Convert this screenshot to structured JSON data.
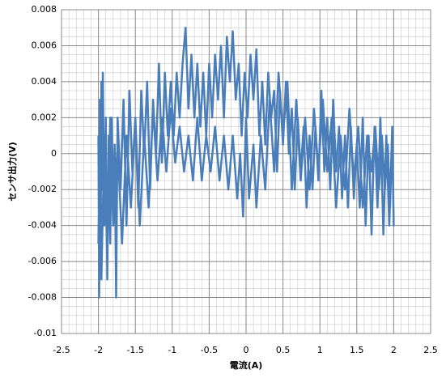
{
  "chart_data": {
    "type": "line",
    "xlabel": "電流(A)",
    "ylabel": "センサ出力(V)",
    "x": [
      -2.0,
      -1.99,
      -1.98,
      -1.97,
      -1.96,
      -1.95,
      -1.94,
      -1.92,
      -1.9,
      -1.88,
      -1.86,
      -1.84,
      -1.82,
      -1.8,
      -1.78,
      -1.76,
      -1.74,
      -1.7,
      -1.66,
      -1.62,
      -1.58,
      -1.54,
      -1.5,
      -1.46,
      -1.42,
      -1.38,
      -1.34,
      -1.3,
      -1.26,
      -1.22,
      -1.18,
      -1.14,
      -1.1,
      -1.06,
      -1.02,
      -0.98,
      -0.94,
      -0.9,
      -0.86,
      -0.82,
      -0.78,
      -0.74,
      -0.7,
      -0.66,
      -0.62,
      -0.58,
      -0.54,
      -0.5,
      -0.46,
      -0.42,
      -0.38,
      -0.34,
      -0.3,
      -0.26,
      -0.22,
      -0.18,
      -0.14,
      -0.1,
      -0.06,
      -0.02,
      0.02,
      0.06,
      0.1,
      0.14,
      0.18,
      0.22,
      0.26,
      0.3,
      0.34,
      0.38,
      0.42,
      0.46,
      0.5,
      0.54,
      0.58,
      0.62,
      0.66,
      0.7,
      0.74,
      0.78,
      0.82,
      0.86,
      0.9,
      0.94,
      0.98,
      1.02,
      1.06,
      1.1,
      1.14,
      1.18,
      1.22,
      1.26,
      1.3,
      1.34,
      1.38,
      1.42,
      1.46,
      1.5,
      1.54,
      1.58,
      1.62,
      1.66,
      1.7,
      1.74,
      1.78,
      1.82,
      1.86,
      1.9,
      1.94,
      1.98,
      2.0,
      1.98,
      1.95,
      1.92,
      1.88,
      1.84,
      1.8,
      1.75,
      1.7,
      1.64,
      1.58,
      1.52,
      1.46,
      1.4,
      1.34,
      1.28,
      1.22,
      1.16,
      1.1,
      1.04,
      0.98,
      0.92,
      0.86,
      0.8,
      0.74,
      0.68,
      0.62,
      0.56,
      0.5,
      0.44,
      0.38,
      0.32,
      0.26,
      0.2,
      0.14,
      0.1,
      0.04,
      0,
      -0.04,
      -0.08,
      -0.12,
      -0.18,
      -0.24,
      -0.3,
      -0.36,
      -0.42,
      -0.48,
      -0.54,
      -0.6,
      -0.66,
      -0.72,
      -0.78,
      -0.84,
      -0.9,
      -0.96,
      -1.02,
      -1.08,
      -1.14,
      -1.2,
      -1.26,
      -1.32,
      -1.38,
      -1.44,
      -1.5,
      -1.56,
      -1.62,
      -1.68,
      -1.74,
      -1.8,
      -1.84,
      -1.88,
      -1.92,
      -1.96,
      -1.98,
      -2.0
    ],
    "series": [
      {
        "color": "#4a7ebb",
        "values": [
          0.001,
          -0.008,
          0.003,
          -0.006,
          0.004,
          -0.002,
          0.0045,
          -0.004,
          0.002,
          -0.007,
          0.001,
          -0.005,
          0.002,
          -0.003,
          0.0005,
          -0.008,
          0.002,
          -0.002,
          0.003,
          -0.004,
          0.0035,
          -0.001,
          0.002,
          -0.003,
          0.0035,
          0,
          0.004,
          -0.002,
          0.003,
          0,
          0.005,
          -0.0005,
          0.0045,
          0.001,
          0.004,
          0.001,
          0.0045,
          0.002,
          0.005,
          0.007,
          0.0025,
          0.0055,
          0.002,
          0.005,
          0.0015,
          0.0045,
          0.001,
          0.005,
          0.002,
          0.0055,
          0.003,
          0.006,
          0.002,
          0.0065,
          0.004,
          0.0068,
          0.003,
          0.005,
          0.001,
          0.0045,
          0.002,
          0.0055,
          0.003,
          0.0058,
          0.001,
          0.004,
          0.0005,
          0.0045,
          0.002,
          0.0035,
          -0.001,
          0.0035,
          0.0005,
          0.004,
          0,
          0.0025,
          -0.002,
          0.002,
          -0.001,
          0.0015,
          -0.003,
          0.001,
          -0.002,
          0.0015,
          -0.0015,
          0.0035,
          -0.001,
          0.002,
          -0.002,
          0.003,
          -0.001,
          0.0015,
          -0.0025,
          0.001,
          -0.003,
          0.0015,
          -0.0025,
          0.0005,
          -0.003,
          0.002,
          -0.004,
          0.001,
          -0.0045,
          0.0015,
          -0.003,
          0.002,
          -0.0045,
          0.001,
          -0.004,
          0.0015,
          -0.004,
          0.001,
          -0.003,
          0.0005,
          -0.002,
          0.001,
          -0.002,
          0.0015,
          -0.001,
          0.001,
          -0.003,
          0.0015,
          -0.0015,
          0.0025,
          -0.002,
          0.001,
          -0.003,
          0.002,
          -0.001,
          0.003,
          -0.001,
          0.0025,
          -0.002,
          0.002,
          -0.0015,
          0.003,
          -0.002,
          0.004,
          0.001,
          0.0045,
          -0.001,
          0.003,
          -0.002,
          0.001,
          -0.003,
          0.0005,
          -0.0025,
          0.002,
          -0.0035,
          0,
          -0.0025,
          0.001,
          -0.002,
          0.001,
          -0.0015,
          0.0015,
          -0.001,
          0.001,
          -0.0015,
          0.002,
          -0.0015,
          0.001,
          -0.001,
          0.0015,
          -0.0005,
          0.0025,
          -0.001,
          0.002,
          -0.0015,
          0.0025,
          -0.003,
          0.001,
          -0.004,
          0.002,
          -0.003,
          0.001,
          -0.005,
          0.0005,
          -0.004,
          0.002,
          -0.006,
          0.001,
          -0.007,
          0.002,
          -0.005
        ]
      }
    ],
    "xlim": [
      -2.5,
      2.5
    ],
    "xticks": [
      -2.5,
      -2,
      -1.5,
      -1,
      -0.5,
      0,
      0.5,
      1,
      1.5,
      2,
      2.5
    ],
    "ylim": [
      -0.01,
      0.008
    ],
    "yticks": [
      -0.01,
      -0.008,
      -0.006,
      -0.004,
      -0.002,
      0,
      0.002,
      0.004,
      0.006,
      0.008
    ],
    "grid": true
  }
}
